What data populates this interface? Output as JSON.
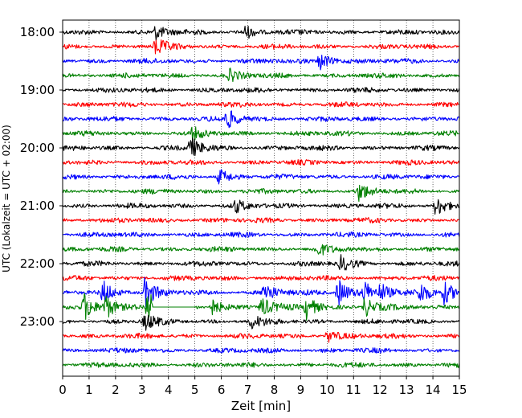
{
  "chart_data": {
    "type": "line",
    "xlabel": "Zeit  [min]",
    "ylabel": "UTC (Lokalzeit = UTC + 02:00)",
    "xlim": [
      0,
      15
    ],
    "x_ticks": [
      "0",
      "1",
      "2",
      "3",
      "4",
      "5",
      "6",
      "7",
      "8",
      "9",
      "10",
      "11",
      "12",
      "13",
      "14",
      "15"
    ],
    "y_tick_labels": [
      "18:00",
      "19:00",
      "20:00",
      "21:00",
      "22:00",
      "23:00"
    ],
    "y_tick_rows": [
      0,
      4,
      8,
      12,
      16,
      20
    ],
    "row_interval_min": 15,
    "row_count": 24,
    "grid": "vertical dotted lines at each minute",
    "trace_colors": [
      "#000000",
      "#ff0000",
      "#0000ff",
      "#008000"
    ],
    "events": [
      {
        "row": 0,
        "x": 3.5,
        "amp": 1.6
      },
      {
        "row": 0,
        "x": 6.9,
        "amp": 1.4
      },
      {
        "row": 1,
        "x": 3.5,
        "amp": 1.8
      },
      {
        "row": 2,
        "x": 9.7,
        "amp": 2.0
      },
      {
        "row": 3,
        "x": 6.3,
        "amp": 1.2
      },
      {
        "row": 6,
        "x": 6.2,
        "amp": 2.2
      },
      {
        "row": 7,
        "x": 4.9,
        "amp": 1.2
      },
      {
        "row": 8,
        "x": 4.8,
        "amp": 2.5
      },
      {
        "row": 10,
        "x": 5.9,
        "amp": 1.7
      },
      {
        "row": 11,
        "x": 11.2,
        "amp": 1.8
      },
      {
        "row": 12,
        "x": 14.1,
        "amp": 2.2
      },
      {
        "row": 12,
        "x": 6.5,
        "amp": 1.3
      },
      {
        "row": 15,
        "x": 9.6,
        "amp": 1.3
      },
      {
        "row": 16,
        "x": 10.5,
        "amp": 1.6
      },
      {
        "row": 18,
        "x": 1.5,
        "amp": 2.6
      },
      {
        "row": 18,
        "x": 3.1,
        "amp": 3.0
      },
      {
        "row": 18,
        "x": 7.6,
        "amp": 2.4
      },
      {
        "row": 18,
        "x": 10.4,
        "amp": 3.2
      },
      {
        "row": 18,
        "x": 11.4,
        "amp": 2.2
      },
      {
        "row": 18,
        "x": 12.0,
        "amp": 1.8
      },
      {
        "row": 18,
        "x": 13.5,
        "amp": 2.1
      },
      {
        "row": 18,
        "x": 14.4,
        "amp": 2.4
      },
      {
        "row": 19,
        "x": 0.8,
        "amp": 3.0
      },
      {
        "row": 19,
        "x": 1.6,
        "amp": 2.6
      },
      {
        "row": 19,
        "x": 3.2,
        "amp": 4.0
      },
      {
        "row": 19,
        "x": 5.6,
        "amp": 2.0
      },
      {
        "row": 19,
        "x": 7.5,
        "amp": 2.2
      },
      {
        "row": 19,
        "x": 9.2,
        "amp": 2.6
      },
      {
        "row": 19,
        "x": 11.4,
        "amp": 2.2
      },
      {
        "row": 20,
        "x": 3.1,
        "amp": 1.8
      },
      {
        "row": 20,
        "x": 7.1,
        "amp": 1.5
      },
      {
        "row": 21,
        "x": 10.0,
        "amp": 1.4
      }
    ],
    "flat_segments": [
      {
        "row": 19,
        "x0": 3.4,
        "x1": 5.0
      }
    ]
  }
}
